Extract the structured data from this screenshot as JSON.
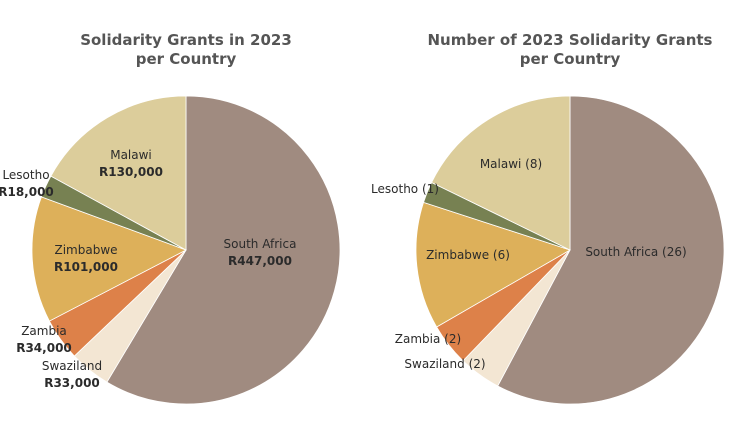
{
  "chart_data": [
    {
      "type": "pie",
      "title_lines": [
        "Solidarity Grants in 2023",
        "per Country"
      ],
      "slices": [
        {
          "label": "South Africa",
          "value": 447000,
          "value_label": "R447,000",
          "color": "#a08b80"
        },
        {
          "label": "Swaziland",
          "value": 33000,
          "value_label": "R33,000",
          "color": "#f3e6d3"
        },
        {
          "label": "Zambia",
          "value": 34000,
          "value_label": "R34,000",
          "color": "#dd8149"
        },
        {
          "label": "Zimbabwe",
          "value": 101000,
          "value_label": "R101,000",
          "color": "#ddb05a"
        },
        {
          "label": "Lesotho",
          "value": 18000,
          "value_label": "R18,000",
          "color": "#778152"
        },
        {
          "label": "Malawi",
          "value": 130000,
          "value_label": "R130,000",
          "color": "#dccd9b"
        }
      ]
    },
    {
      "type": "pie",
      "title_lines": [
        "Number of 2023 Solidarity Grants",
        "per Country"
      ],
      "slices": [
        {
          "label": "South Africa (26)",
          "value": 26,
          "color": "#a08b80"
        },
        {
          "label": "Swaziland (2)",
          "value": 2,
          "color": "#f3e6d3"
        },
        {
          "label": "Zambia (2)",
          "value": 2,
          "color": "#dd8149"
        },
        {
          "label": "Zimbabwe (6)",
          "value": 6,
          "color": "#ddb05a"
        },
        {
          "label": "Lesotho (1)",
          "value": 1,
          "color": "#778152"
        },
        {
          "label": "Malawi (8)",
          "value": 8,
          "color": "#dccd9b"
        }
      ]
    }
  ]
}
